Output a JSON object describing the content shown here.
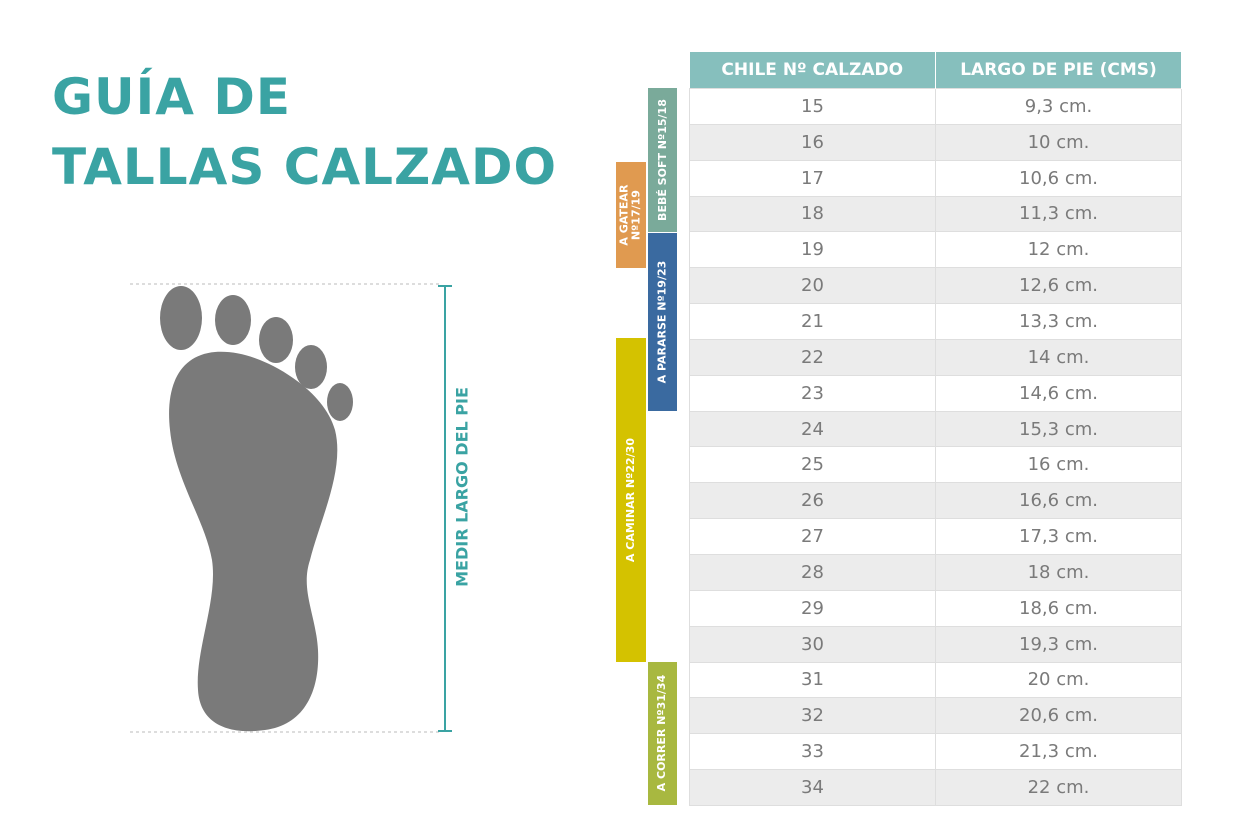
{
  "header": {
    "title": [
      "GUÍA DE",
      "TALLAS CALZADO"
    ]
  },
  "measure_label": "MEDIR LARGO DEL PIE",
  "bands": [
    "BEBÉ SOFT  Nº15/18",
    "A GATEAR\nNº17/19",
    "A PARARSE  Nº19/23",
    "A CAMINAR  Nº22/30",
    "A CORRER  Nº31/34"
  ],
  "table": {
    "headers": [
      "CHILE Nº CALZADO",
      "LARGO DE PIE (CMS)"
    ],
    "rows": [
      [
        15,
        "9,3 cm."
      ],
      [
        16,
        "10 cm."
      ],
      [
        17,
        "10,6 cm."
      ],
      [
        18,
        "11,3 cm."
      ],
      [
        19,
        "12 cm."
      ],
      [
        20,
        "12,6 cm."
      ],
      [
        21,
        "13,3 cm."
      ],
      [
        22,
        "14 cm."
      ],
      [
        23,
        "14,6 cm."
      ],
      [
        24,
        "15,3 cm."
      ],
      [
        25,
        "16 cm."
      ],
      [
        26,
        "16,6 cm."
      ],
      [
        27,
        "17,3 cm."
      ],
      [
        28,
        "18 cm."
      ],
      [
        29,
        "18,6 cm."
      ],
      [
        30,
        "19,3 cm."
      ],
      [
        31,
        "20 cm."
      ],
      [
        32,
        "20,6 cm."
      ],
      [
        33,
        "21,3 cm."
      ],
      [
        34,
        "22 cm."
      ]
    ]
  }
}
